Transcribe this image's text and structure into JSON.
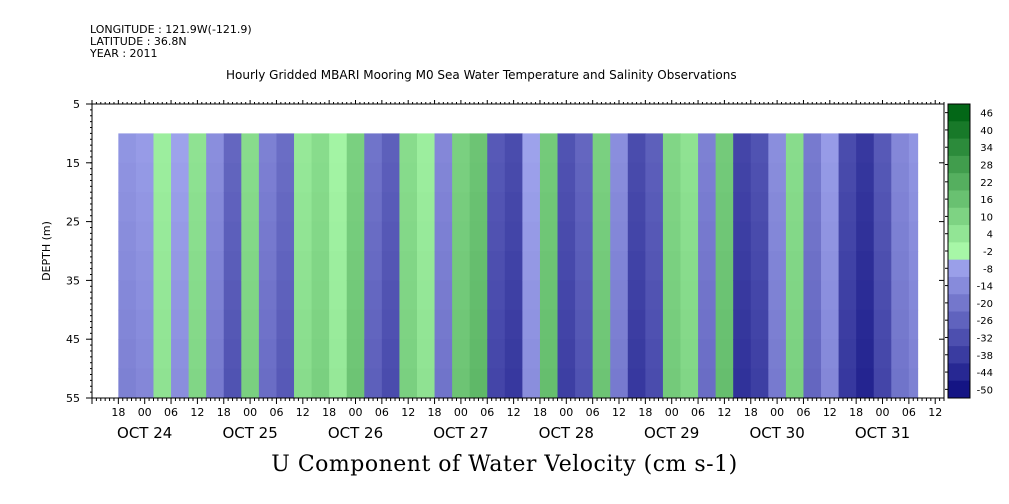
{
  "header": {
    "longitude": "LONGITUDE : 121.9W(-121.9)",
    "latitude": "LATITUDE : 36.8N",
    "year": "YEAR : 2011"
  },
  "chart_data": {
    "type": "heatmap",
    "title": "Hourly Gridded MBARI Mooring M0 Sea Water Temperature and Salinity Observations",
    "bottom_title": "U Component of Water Velocity (cm s-1)",
    "ylabel": "DEPTH (m)",
    "ylim": [
      5,
      55
    ],
    "y_inverted": true,
    "y_ticks": [
      5,
      15,
      25,
      35,
      45,
      55
    ],
    "x_hour_tick_labels": [
      "18",
      "00",
      "06",
      "12",
      "18",
      "00",
      "06",
      "12",
      "18",
      "00",
      "06",
      "12",
      "18",
      "00",
      "06",
      "12",
      "18",
      "00",
      "06",
      "12",
      "18",
      "00",
      "06",
      "12",
      "18",
      "00",
      "06",
      "12",
      "18",
      "00",
      "06",
      "12"
    ],
    "x_date_labels": [
      "OCT 24",
      "OCT 25",
      "OCT 26",
      "OCT 27",
      "OCT 28",
      "OCT 29",
      "OCT 30",
      "OCT 31"
    ],
    "time_range_hours": [
      0,
      194
    ],
    "data_time_range_hours": [
      6,
      188
    ],
    "data_depth_range": [
      10,
      55
    ],
    "colorbar": {
      "min": -50,
      "max": 50,
      "labels": [
        "46",
        "40",
        "34",
        "28",
        "22",
        "16",
        "10",
        "4",
        "-2",
        "-8",
        "-14",
        "-20",
        "-26",
        "-32",
        "-38",
        "-44",
        "-50"
      ]
    },
    "velocity_profile": [
      {
        "t": 6,
        "u": -8
      },
      {
        "t": 10,
        "u": -6
      },
      {
        "t": 14,
        "u": 4
      },
      {
        "t": 18,
        "u": -4
      },
      {
        "t": 22,
        "u": 8
      },
      {
        "t": 26,
        "u": -10
      },
      {
        "t": 30,
        "u": -22
      },
      {
        "t": 34,
        "u": 10
      },
      {
        "t": 38,
        "u": -14
      },
      {
        "t": 42,
        "u": -20
      },
      {
        "t": 46,
        "u": 6
      },
      {
        "t": 50,
        "u": 10
      },
      {
        "t": 54,
        "u": 2
      },
      {
        "t": 58,
        "u": 14
      },
      {
        "t": 62,
        "u": -18
      },
      {
        "t": 66,
        "u": -24
      },
      {
        "t": 70,
        "u": 10
      },
      {
        "t": 74,
        "u": 4
      },
      {
        "t": 78,
        "u": -12
      },
      {
        "t": 82,
        "u": 14
      },
      {
        "t": 86,
        "u": 18
      },
      {
        "t": 90,
        "u": -26
      },
      {
        "t": 94,
        "u": -30
      },
      {
        "t": 98,
        "u": -4
      },
      {
        "t": 102,
        "u": 16
      },
      {
        "t": 106,
        "u": -28
      },
      {
        "t": 110,
        "u": -22
      },
      {
        "t": 114,
        "u": 14
      },
      {
        "t": 118,
        "u": -10
      },
      {
        "t": 122,
        "u": -30
      },
      {
        "t": 126,
        "u": -24
      },
      {
        "t": 130,
        "u": 12
      },
      {
        "t": 134,
        "u": 8
      },
      {
        "t": 138,
        "u": -14
      },
      {
        "t": 142,
        "u": 16
      },
      {
        "t": 146,
        "u": -32
      },
      {
        "t": 150,
        "u": -28
      },
      {
        "t": 154,
        "u": -10
      },
      {
        "t": 158,
        "u": 10
      },
      {
        "t": 162,
        "u": -16
      },
      {
        "t": 166,
        "u": -6
      },
      {
        "t": 170,
        "u": -30
      },
      {
        "t": 174,
        "u": -36
      },
      {
        "t": 178,
        "u": -26
      },
      {
        "t": 182,
        "u": -12
      },
      {
        "t": 186,
        "u": -8
      },
      {
        "t": 188,
        "u": -6
      }
    ]
  }
}
